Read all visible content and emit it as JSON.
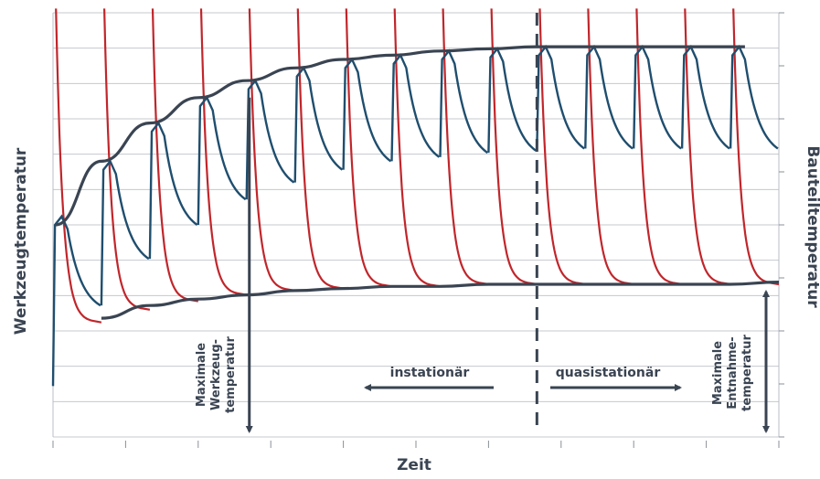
{
  "chart_data": {
    "type": "line",
    "title": "",
    "xlabel": "Zeit",
    "ylabel_left": "Werkzeugtemperatur",
    "ylabel_right": "Bauteiltemperatur",
    "grid": true,
    "legend": "none",
    "xlim": [
      0,
      15
    ],
    "ylim": [
      0,
      100
    ],
    "series": [
      {
        "name": "",
        "role": "werkzeug",
        "color": "#1f4e6e",
        "cycles": [
          {
            "start": 0.0,
            "peak": 52,
            "trough": 31
          },
          {
            "start": 1.0,
            "peak": 65,
            "trough": 42
          },
          {
            "start": 2.0,
            "peak": 74,
            "trough": 50
          },
          {
            "start": 3.0,
            "peak": 80,
            "trough": 56
          },
          {
            "start": 4.0,
            "peak": 84,
            "trough": 60
          },
          {
            "start": 5.0,
            "peak": 87,
            "trough": 63
          },
          {
            "start": 6.0,
            "peak": 89,
            "trough": 65
          },
          {
            "start": 7.0,
            "peak": 90,
            "trough": 66
          },
          {
            "start": 8.0,
            "peak": 91,
            "trough": 67
          },
          {
            "start": 9.0,
            "peak": 91.5,
            "trough": 67.5
          },
          {
            "start": 10.0,
            "peak": 92,
            "trough": 68
          },
          {
            "start": 11.0,
            "peak": 92,
            "trough": 68
          },
          {
            "start": 12.0,
            "peak": 92,
            "trough": 68
          },
          {
            "start": 13.0,
            "peak": 92,
            "trough": 68
          },
          {
            "start": 14.0,
            "peak": 92,
            "trough": 68
          }
        ]
      },
      {
        "name": "",
        "role": "bauteil",
        "color": "#c0262b",
        "cycles": [
          {
            "start": 0.0,
            "min": 27
          },
          {
            "start": 1.0,
            "min": 30
          },
          {
            "start": 2.0,
            "min": 32
          },
          {
            "start": 3.0,
            "min": 33.5
          },
          {
            "start": 4.0,
            "min": 34.5
          },
          {
            "start": 5.0,
            "min": 35
          },
          {
            "start": 6.0,
            "min": 35.5
          },
          {
            "start": 7.0,
            "min": 35.5
          },
          {
            "start": 8.0,
            "min": 36
          },
          {
            "start": 9.0,
            "min": 36
          },
          {
            "start": 10.0,
            "min": 36
          },
          {
            "start": 11.0,
            "min": 36
          },
          {
            "start": 12.0,
            "min": 36
          },
          {
            "start": 13.0,
            "min": 36
          },
          {
            "start": 14.0,
            "min": 36
          }
        ]
      }
    ],
    "envelopes": [
      {
        "name": "upper",
        "color": "#3a4452",
        "points": [
          [
            0.05,
            50
          ],
          [
            1,
            65
          ],
          [
            2,
            74
          ],
          [
            3,
            80
          ],
          [
            4,
            84
          ],
          [
            5,
            87
          ],
          [
            6,
            89
          ],
          [
            7,
            90
          ],
          [
            8,
            91
          ],
          [
            9,
            91.5
          ],
          [
            10,
            92
          ],
          [
            11,
            92
          ],
          [
            12,
            92
          ],
          [
            13,
            92
          ],
          [
            14.3,
            92
          ]
        ]
      },
      {
        "name": "lower",
        "color": "#3a4452",
        "points": [
          [
            1,
            28
          ],
          [
            2,
            31
          ],
          [
            3,
            32.5
          ],
          [
            4,
            33.5
          ],
          [
            5,
            34.5
          ],
          [
            6,
            35
          ],
          [
            7,
            35.5
          ],
          [
            8,
            35.5
          ],
          [
            9,
            36
          ],
          [
            10,
            36
          ],
          [
            11,
            36
          ],
          [
            12,
            36
          ],
          [
            13,
            36
          ],
          [
            14,
            36
          ],
          [
            15,
            36.5
          ]
        ]
      }
    ],
    "divider_x": 10,
    "annotations": [
      {
        "text": "instationär",
        "arrow": "left"
      },
      {
        "text": "quasistationär",
        "arrow": "right"
      },
      {
        "lines": [
          "Maximale",
          "Werkzeug-",
          "temperatur"
        ],
        "x": 4,
        "from": 80,
        "to": 0
      },
      {
        "lines": [
          "Maximale",
          "Entnahme-",
          "temperatur"
        ],
        "x": 15,
        "from": 36,
        "to": 0
      }
    ]
  }
}
